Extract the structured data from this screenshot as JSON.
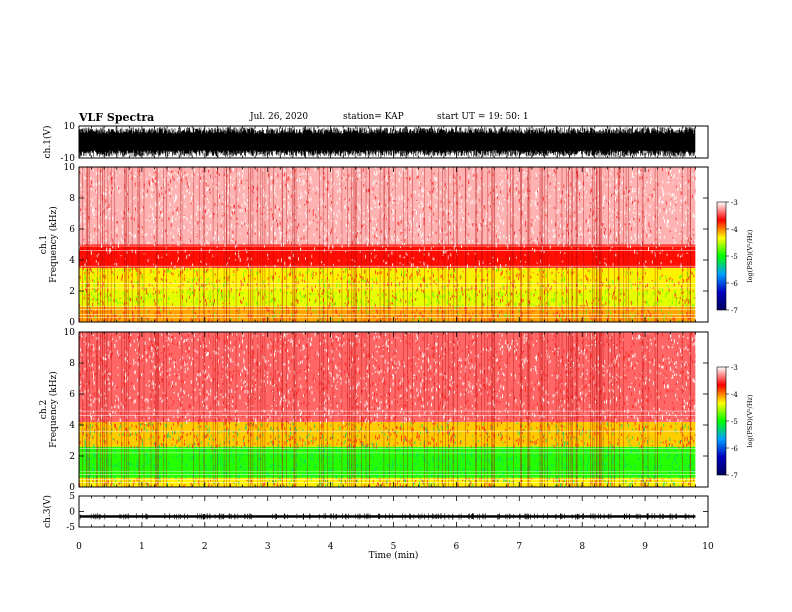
{
  "header": {
    "title": "VLF Spectra",
    "date": "Jul. 26, 2020",
    "station": "station= KAP",
    "start_ut": "start UT =  19: 50: 1"
  },
  "chart_data": [
    {
      "type": "line",
      "panel": "ch1-waveform",
      "ylabel": "ch.1(V)",
      "ylim": [
        -10,
        10
      ],
      "yticks": [
        "10",
        "-10"
      ],
      "xlim": [
        0,
        10
      ],
      "data_range_min": [
        0,
        9.8
      ],
      "color": "#000000",
      "amplitude": "fills most of the range between -10 and 10 V"
    },
    {
      "type": "heatmap",
      "panel": "ch1-spectrogram",
      "ylabel": "ch.1\nFrequency (kHz)",
      "ylim": [
        0,
        10
      ],
      "yticks": [
        "0",
        "2",
        "4",
        "6",
        "8",
        "10"
      ],
      "xlim": [
        0,
        10
      ],
      "data_range_min": [
        0,
        9.8
      ],
      "band_levels": [
        {
          "freq_khz": [
            0,
            1
          ],
          "log_psd": -4.1
        },
        {
          "freq_khz": [
            1,
            2
          ],
          "log_psd": -4.4
        },
        {
          "freq_khz": [
            2,
            3.5
          ],
          "log_psd": -4.3
        },
        {
          "freq_khz": [
            3.5,
            5
          ],
          "log_psd": -3.7
        },
        {
          "freq_khz": [
            5,
            10
          ],
          "log_psd": -3.2
        }
      ],
      "colorbar": {
        "label": "log(PSD)(V²/Hz)",
        "range": [
          -7,
          -3
        ],
        "ticks": [
          "-3",
          "-4",
          "-5",
          "-6",
          "-7"
        ],
        "colors": [
          "#ffffff",
          "#ff0000",
          "#ffff00",
          "#00ff00",
          "#00a0ff",
          "#0000c0",
          "#000060"
        ]
      }
    },
    {
      "type": "heatmap",
      "panel": "ch2-spectrogram",
      "ylabel": "ch.2\nFrequency (kHz)",
      "ylim": [
        0,
        10
      ],
      "yticks": [
        "0",
        "2",
        "4",
        "6",
        "8",
        "10"
      ],
      "xlim": [
        0,
        10
      ],
      "data_range_min": [
        0,
        9.8
      ],
      "band_levels": [
        {
          "freq_khz": [
            0,
            0.6
          ],
          "log_psd": -4.3
        },
        {
          "freq_khz": [
            0.6,
            2.6
          ],
          "log_psd": -4.9
        },
        {
          "freq_khz": [
            2.6,
            4.2
          ],
          "log_psd": -4.2
        },
        {
          "freq_khz": [
            4.2,
            10
          ],
          "log_psd": -3.4
        }
      ],
      "colorbar": {
        "label": "log(PSD)(V²/Hz)",
        "range": [
          -7,
          -3
        ],
        "ticks": [
          "-3",
          "-4",
          "-5",
          "-6",
          "-7"
        ],
        "colors": [
          "#ffffff",
          "#ff0000",
          "#ffff00",
          "#00ff00",
          "#00a0ff",
          "#0000c0",
          "#000060"
        ]
      }
    },
    {
      "type": "line",
      "panel": "ch3-waveform",
      "ylabel": "ch.3(V)",
      "ylim": [
        -5,
        5
      ],
      "yticks": [
        "5",
        "0",
        "-5"
      ],
      "xlim": [
        0,
        10
      ],
      "xlabel": "Time (min)",
      "xticks": [
        "0",
        "1",
        "2",
        "3",
        "4",
        "5",
        "6",
        "7",
        "8",
        "9",
        "10"
      ],
      "data_range_min": [
        0,
        9.8
      ],
      "baseline_v": -1.6,
      "band_v": [
        -2.0,
        -1.2
      ],
      "color": "#000000"
    }
  ]
}
